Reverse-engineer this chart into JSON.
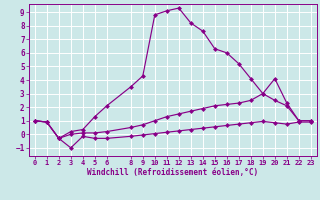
{
  "xlabel": "Windchill (Refroidissement éolien,°C)",
  "bg_color": "#cce8e8",
  "line_color": "#880088",
  "grid_color": "#aacccc",
  "spine_color": "#880088",
  "xlim": [
    -0.5,
    23.5
  ],
  "ylim": [
    -1.6,
    9.6
  ],
  "xticks": [
    0,
    1,
    2,
    3,
    4,
    5,
    6,
    8,
    9,
    10,
    11,
    12,
    13,
    14,
    15,
    16,
    17,
    18,
    19,
    20,
    21,
    22,
    23
  ],
  "yticks": [
    -1,
    0,
    1,
    2,
    3,
    4,
    5,
    6,
    7,
    8,
    9
  ],
  "curve1_x": [
    0,
    1,
    2,
    3,
    4,
    5,
    6,
    8,
    9,
    10,
    11,
    12,
    13,
    14,
    15,
    16,
    17,
    18,
    19,
    20,
    21,
    22,
    23
  ],
  "curve1_y": [
    1.0,
    0.9,
    -0.3,
    0.2,
    0.35,
    1.3,
    2.1,
    3.5,
    4.3,
    8.8,
    9.1,
    9.3,
    8.2,
    7.6,
    6.3,
    6.0,
    5.2,
    4.1,
    3.0,
    4.1,
    2.3,
    1.0,
    1.0
  ],
  "curve2_x": [
    0,
    1,
    2,
    3,
    4,
    5,
    6,
    8,
    9,
    10,
    11,
    12,
    13,
    14,
    15,
    16,
    17,
    18,
    19,
    20,
    21,
    22,
    23
  ],
  "curve2_y": [
    1.0,
    0.9,
    -0.3,
    0.0,
    0.1,
    0.1,
    0.2,
    0.5,
    0.7,
    1.0,
    1.3,
    1.5,
    1.7,
    1.9,
    2.1,
    2.2,
    2.3,
    2.5,
    3.0,
    2.5,
    2.1,
    1.0,
    1.0
  ],
  "curve3_x": [
    0,
    1,
    2,
    3,
    4,
    5,
    6,
    8,
    9,
    10,
    11,
    12,
    13,
    14,
    15,
    16,
    17,
    18,
    19,
    20,
    21,
    22,
    23
  ],
  "curve3_y": [
    1.0,
    0.9,
    -0.3,
    -1.0,
    -0.15,
    -0.3,
    -0.3,
    -0.15,
    -0.05,
    0.05,
    0.15,
    0.25,
    0.35,
    0.45,
    0.55,
    0.65,
    0.75,
    0.85,
    0.95,
    0.85,
    0.75,
    0.9,
    0.9
  ]
}
